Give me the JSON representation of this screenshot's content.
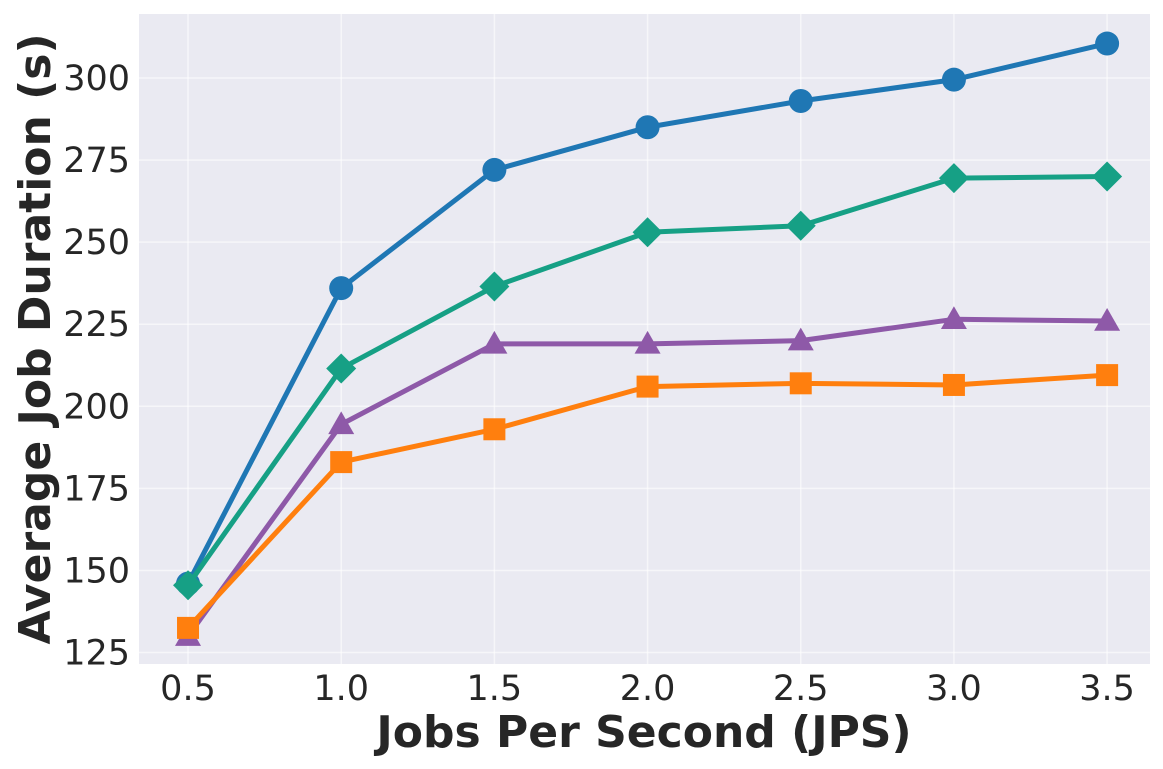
{
  "chart_data": {
    "type": "line",
    "title": "",
    "xlabel": "Jobs Per Second (JPS)",
    "ylabel": "Average Job Duration (s)",
    "x": [
      0.5,
      1.0,
      1.5,
      2.0,
      2.5,
      3.0,
      3.5
    ],
    "x_tick_labels": [
      "0.5",
      "1.0",
      "1.5",
      "2.0",
      "2.5",
      "3.0",
      "3.5"
    ],
    "xlim": [
      0.34,
      3.64
    ],
    "y_ticks": [
      125,
      150,
      175,
      200,
      225,
      250,
      275,
      300
    ],
    "y_tick_labels": [
      "125",
      "150",
      "175",
      "200",
      "225",
      "250",
      "275",
      "300"
    ],
    "ylim": [
      121.5,
      319.5
    ],
    "grid": true,
    "background_color": "#eaeaf2",
    "series": [
      {
        "color": "#1f77b4",
        "marker": "circle",
        "values": [
          146,
          236,
          272,
          285,
          293,
          299.5,
          310.5
        ]
      },
      {
        "color": "#16a085",
        "marker": "diamond",
        "values": [
          145.5,
          211.5,
          236.5,
          253,
          255,
          269.5,
          270
        ]
      },
      {
        "color": "#8e59a8",
        "marker": "triangle",
        "values": [
          130,
          194.5,
          219,
          219,
          220,
          226.5,
          226
        ]
      },
      {
        "color": "#ff7f0e",
        "marker": "square",
        "values": [
          132.5,
          183,
          193,
          206,
          207,
          206.5,
          209.5
        ]
      }
    ]
  }
}
